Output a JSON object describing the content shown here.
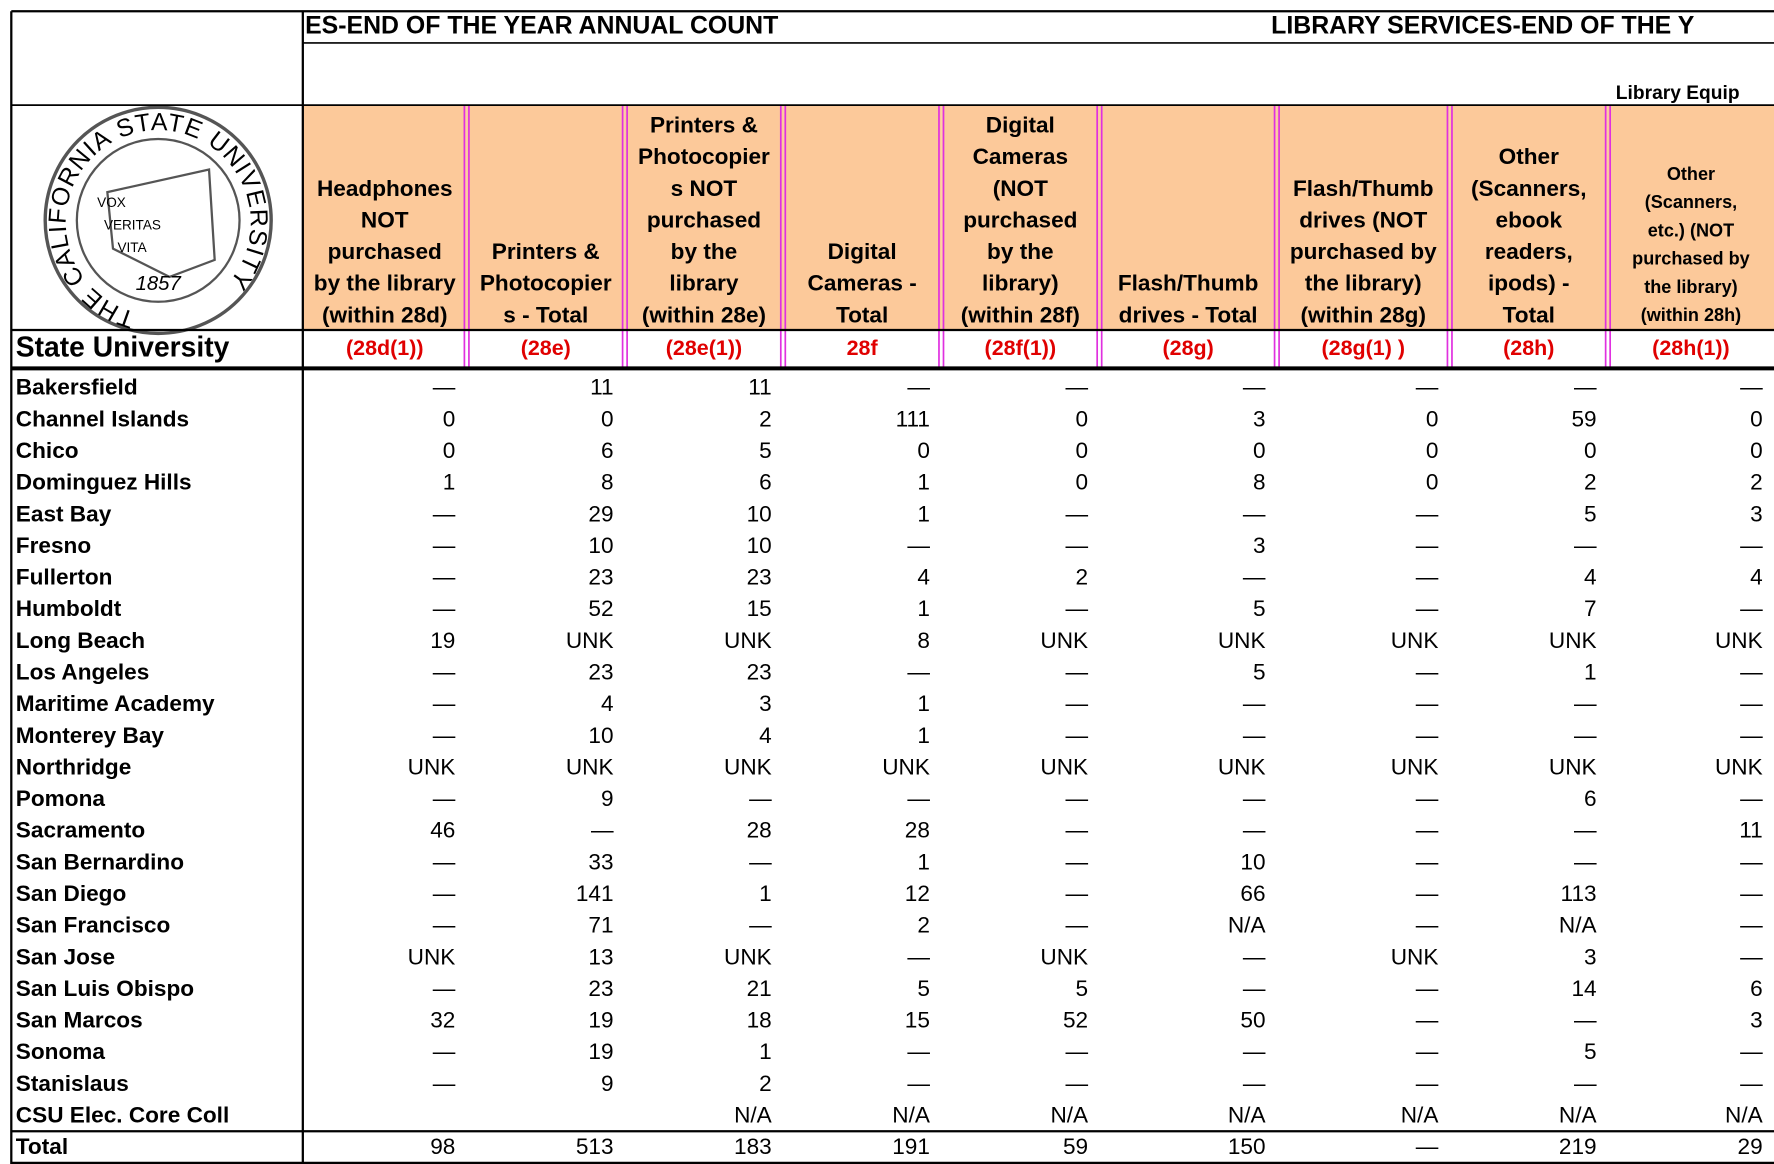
{
  "title_left": "ES-END OF THE YEAR ANNUAL COUNT",
  "title_right": "LIBRARY SERVICES-END OF THE Y",
  "section_label": "Library Equip",
  "logo": {
    "ring_text": "THE CALIFORNIA STATE UNIVERSITY",
    "motto": [
      "VOX",
      "VERITAS",
      "VITA"
    ],
    "year": "1857"
  },
  "row_header": "State University",
  "columns": [
    {
      "header": [
        "Headphones",
        "NOT",
        "purchased",
        "by the library",
        "(within 28d)"
      ],
      "code": "(28d(1))"
    },
    {
      "header": [
        "Printers   &",
        "Photocopier",
        "s - Total"
      ],
      "code": "(28e)"
    },
    {
      "header": [
        "Printers &",
        "Photocopier",
        "s NOT",
        "purchased",
        "by the",
        "library",
        "(within 28e)"
      ],
      "code": "(28e(1))"
    },
    {
      "header": [
        "Digital",
        "Cameras -",
        "Total"
      ],
      "code": "28f"
    },
    {
      "header": [
        "Digital",
        "Cameras",
        "(NOT",
        "purchased",
        "by the",
        "library)",
        "(within 28f)"
      ],
      "code": "(28f(1))"
    },
    {
      "header": [
        "Flash/Thumb",
        "drives - Total"
      ],
      "code": "(28g)"
    },
    {
      "header": [
        "Flash/Thumb",
        "drives (NOT",
        "purchased by",
        "the library)",
        "(within 28g)"
      ],
      "code": "(28g(1) )"
    },
    {
      "header": [
        "Other",
        "(Scanners,",
        "ebook",
        "readers,",
        "ipods) -",
        "Total"
      ],
      "code": "(28h)"
    },
    {
      "header": [
        "Other",
        "(Scanners,",
        "etc.) (NOT",
        "purchased by",
        "the library)",
        "(within 28h)"
      ],
      "code": "(28h(1))"
    }
  ],
  "rows": [
    {
      "name": "Bakersfield",
      "values": [
        "—",
        11,
        11,
        "—",
        "—",
        "—",
        "—",
        "—",
        "—"
      ]
    },
    {
      "name": "Channel Islands",
      "values": [
        0,
        0,
        2,
        111,
        0,
        3,
        0,
        59,
        0
      ]
    },
    {
      "name": "Chico",
      "values": [
        0,
        6,
        5,
        0,
        0,
        0,
        0,
        0,
        0
      ]
    },
    {
      "name": "Dominguez Hills",
      "values": [
        1,
        8,
        6,
        1,
        0,
        8,
        0,
        2,
        2
      ]
    },
    {
      "name": "East Bay",
      "values": [
        "—",
        29,
        10,
        1,
        "—",
        "—",
        "—",
        5,
        3
      ]
    },
    {
      "name": "Fresno",
      "values": [
        "—",
        10,
        10,
        "—",
        "—",
        3,
        "—",
        "—",
        "—"
      ]
    },
    {
      "name": "Fullerton",
      "values": [
        "—",
        23,
        23,
        4,
        2,
        "—",
        "—",
        4,
        4
      ]
    },
    {
      "name": "Humboldt",
      "values": [
        "—",
        52,
        15,
        1,
        "—",
        5,
        "—",
        7,
        "—"
      ]
    },
    {
      "name": "Long Beach",
      "values": [
        19,
        "UNK",
        "UNK",
        8,
        "UNK",
        "UNK",
        "UNK",
        "UNK",
        "UNK"
      ]
    },
    {
      "name": "Los Angeles",
      "values": [
        "—",
        23,
        23,
        "—",
        "—",
        5,
        "—",
        1,
        "—"
      ]
    },
    {
      "name": "Maritime Academy",
      "values": [
        "—",
        4,
        3,
        1,
        "—",
        "—",
        "—",
        "—",
        "—"
      ]
    },
    {
      "name": "Monterey Bay",
      "values": [
        "—",
        10,
        4,
        1,
        "—",
        "—",
        "—",
        "—",
        "—"
      ]
    },
    {
      "name": "Northridge",
      "values": [
        "UNK",
        "UNK",
        "UNK",
        "UNK",
        "UNK",
        "UNK",
        "UNK",
        "UNK",
        "UNK"
      ]
    },
    {
      "name": "Pomona",
      "values": [
        "—",
        9,
        "—",
        "—",
        "—",
        "—",
        "—",
        6,
        "—"
      ]
    },
    {
      "name": "Sacramento",
      "values": [
        46,
        "—",
        28,
        28,
        "—",
        "—",
        "—",
        "—",
        11
      ]
    },
    {
      "name": "San Bernardino",
      "values": [
        "—",
        33,
        "—",
        1,
        "—",
        10,
        "—",
        "—",
        "—"
      ]
    },
    {
      "name": "San Diego",
      "values": [
        "—",
        141,
        1,
        12,
        "—",
        66,
        "—",
        113,
        "—"
      ]
    },
    {
      "name": "San Francisco",
      "values": [
        "—",
        71,
        "—",
        2,
        "—",
        "N/A",
        "—",
        "N/A",
        "—"
      ]
    },
    {
      "name": "San Jose",
      "values": [
        "UNK",
        13,
        "UNK",
        "—",
        "UNK",
        "—",
        "UNK",
        3,
        "—"
      ]
    },
    {
      "name": "San Luis Obispo",
      "values": [
        "—",
        23,
        21,
        5,
        5,
        "—",
        "—",
        14,
        6
      ]
    },
    {
      "name": "San Marcos",
      "values": [
        32,
        19,
        18,
        15,
        52,
        50,
        "—",
        "—",
        3
      ]
    },
    {
      "name": "Sonoma",
      "values": [
        "—",
        19,
        1,
        "—",
        "—",
        "—",
        "—",
        5,
        "—"
      ]
    },
    {
      "name": "Stanislaus",
      "values": [
        "—",
        9,
        2,
        "—",
        "—",
        "—",
        "—",
        "—",
        "—"
      ]
    },
    {
      "name": "CSU Elec. Core Coll",
      "values": [
        null,
        null,
        "N/A",
        "N/A",
        "N/A",
        "N/A",
        "N/A",
        "N/A",
        "N/A"
      ]
    },
    {
      "name": "Total",
      "values": [
        98,
        513,
        183,
        191,
        59,
        150,
        "—",
        219,
        29
      ]
    }
  ]
}
